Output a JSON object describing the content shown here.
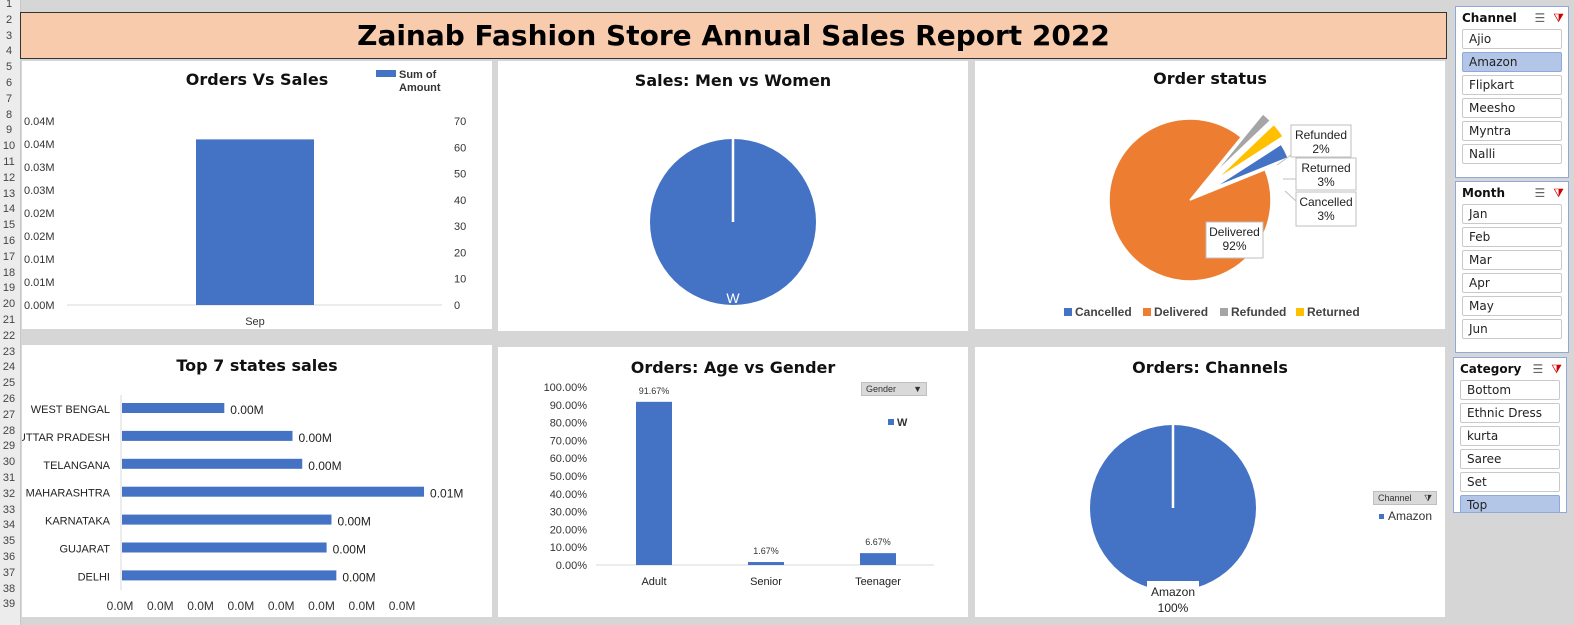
{
  "row_numbers": [
    "1",
    "2",
    "3",
    "4",
    "5",
    "6",
    "7",
    "8",
    "9",
    "10",
    "11",
    "12",
    "13",
    "14",
    "15",
    "16",
    "17",
    "18",
    "19",
    "20",
    "21",
    "22",
    "23",
    "24",
    "25",
    "26",
    "27",
    "28",
    "29",
    "30",
    "31",
    "32",
    "33",
    "34",
    "35",
    "36",
    "37",
    "38",
    "39"
  ],
  "report_title": "Zainab Fashion Store Annual Sales Report 2022",
  "colors": {
    "blue": "#4472c4",
    "orange": "#ed7d31",
    "gray": "#a5a5a5",
    "yellow": "#ffc000",
    "title_bg": "#f8cbad"
  },
  "chart_data": [
    {
      "id": "orders_vs_sales",
      "type": "bar",
      "title": "Orders Vs Sales",
      "categories": [
        "Sep"
      ],
      "series": [
        {
          "name": "Sum of Amount",
          "values": [
            0.036
          ]
        }
      ],
      "left_axis_ticks": [
        "0.04M",
        "0.04M",
        "0.03M",
        "0.03M",
        "0.02M",
        "0.02M",
        "0.01M",
        "0.01M",
        "0.00M"
      ],
      "right_axis_ticks": [
        "70",
        "60",
        "50",
        "40",
        "30",
        "20",
        "10",
        "0"
      ],
      "ylim": [
        0,
        0.04
      ],
      "legend_label_lines": [
        "Sum of",
        "Amount"
      ],
      "legend": "top-right"
    },
    {
      "id": "sales_men_women",
      "type": "pie",
      "title": "Sales: Men vs Women",
      "labels": [
        "W"
      ],
      "values": [
        100
      ]
    },
    {
      "id": "order_status",
      "type": "pie",
      "title": "Order status",
      "labels": [
        "Cancelled",
        "Delivered",
        "Refunded",
        "Returned"
      ],
      "values": [
        3,
        92,
        2,
        3
      ],
      "data_labels": [
        {
          "name": "Cancelled",
          "pct": "3%"
        },
        {
          "name": "Delivered",
          "pct": "92%"
        },
        {
          "name": "Refunded",
          "pct": "2%"
        },
        {
          "name": "Returned",
          "pct": "3%"
        }
      ],
      "legend": "bottom"
    },
    {
      "id": "top_states",
      "type": "bar",
      "title": "Top 7 states sales",
      "categories": [
        "WEST BENGAL",
        "UTTAR PRADESH",
        "TELANGANA",
        "MAHARASHTRA",
        "KARNATAKA",
        "GUJARAT",
        "DELHI"
      ],
      "values": [
        0.0021,
        0.0035,
        0.0037,
        0.0062,
        0.0043,
        0.0042,
        0.0044
      ],
      "value_labels": [
        "0.00M",
        "0.00M",
        "0.00M",
        "0.01M",
        "0.00M",
        "0.00M",
        "0.00M"
      ],
      "x_axis_ticks": [
        "0.0M",
        "0.0M",
        "0.0M",
        "0.0M",
        "0.0M",
        "0.0M",
        "0.0M",
        "0.0M"
      ],
      "xlim": [
        0,
        0.007
      ]
    },
    {
      "id": "age_vs_gender",
      "type": "bar",
      "title": "Orders: Age vs Gender",
      "categories": [
        "Adult",
        "Senior",
        "Teenager"
      ],
      "series": [
        {
          "name": "W",
          "values": [
            91.67,
            1.67,
            6.67
          ]
        }
      ],
      "value_labels": [
        "91.67%",
        "1.67%",
        "6.67%"
      ],
      "y_axis_ticks": [
        "100.00%",
        "90.00%",
        "80.00%",
        "70.00%",
        "60.00%",
        "50.00%",
        "40.00%",
        "30.00%",
        "20.00%",
        "10.00%",
        "0.00%"
      ],
      "ylim": [
        0,
        100
      ],
      "filter_label": "Gender",
      "legend": "right"
    },
    {
      "id": "orders_channels",
      "type": "pie",
      "title": "Orders: Channels",
      "labels": [
        "Amazon"
      ],
      "values": [
        100
      ],
      "data_label_pct": "100%",
      "filter_label": "Channel",
      "legend": "right"
    }
  ],
  "slicers": {
    "channel": {
      "title": "Channel",
      "items": [
        "Ajio",
        "Amazon",
        "Flipkart",
        "Meesho",
        "Myntra",
        "Nalli"
      ],
      "selected": "Amazon"
    },
    "month": {
      "title": "Month",
      "items": [
        "Jan",
        "Feb",
        "Mar",
        "Apr",
        "May",
        "Jun"
      ]
    },
    "category": {
      "title": "Category",
      "items": [
        "Bottom",
        "Ethnic Dress",
        "kurta",
        "Saree",
        "Set",
        "Top"
      ],
      "selected": "Top"
    }
  }
}
